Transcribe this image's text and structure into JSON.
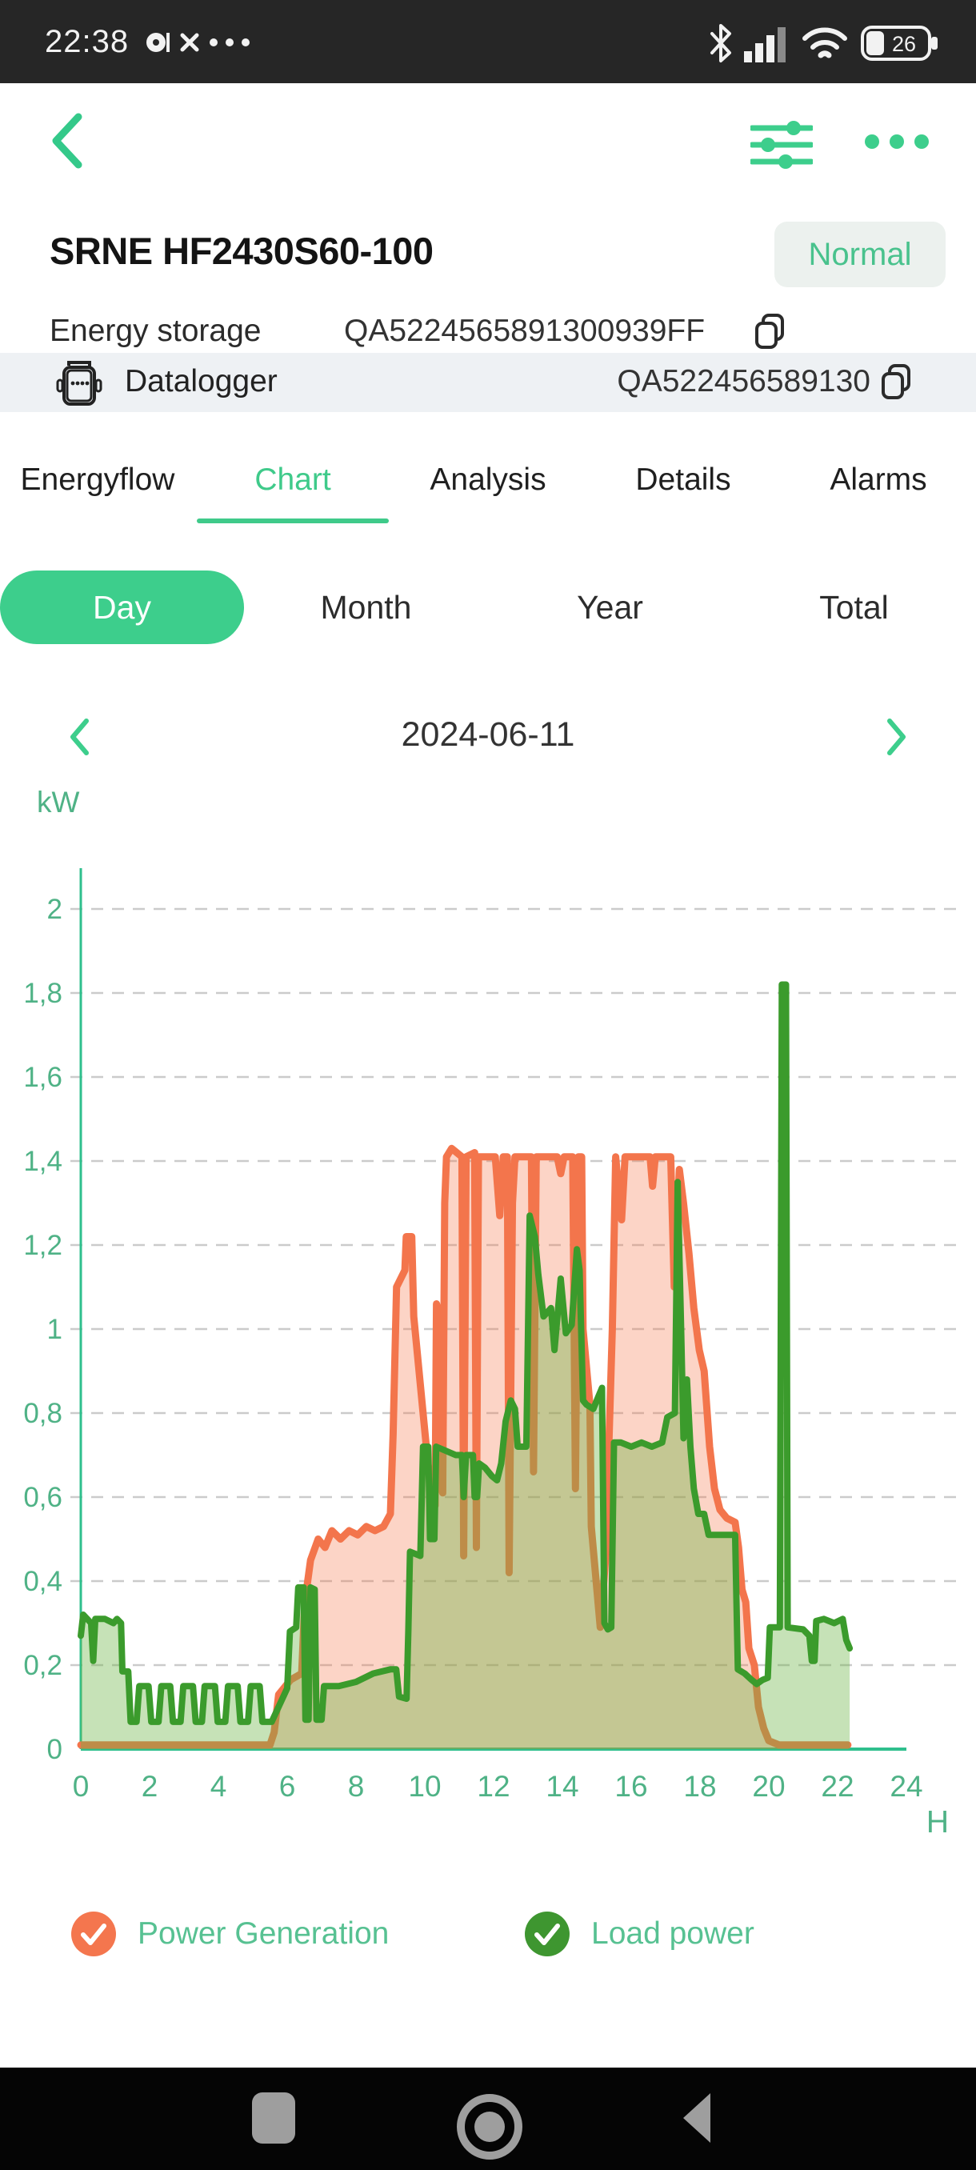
{
  "status_bar": {
    "time": "22:38",
    "battery_percent": "26"
  },
  "device": {
    "title": "SRNE HF2430S60-100",
    "status_badge": "Normal",
    "storage_label": "Energy storage",
    "storage_id": "QA5224565891300939FF",
    "datalogger_label": "Datalogger",
    "datalogger_id": "QA522456589130"
  },
  "tabs": {
    "items": [
      "Energyflow",
      "Chart",
      "Analysis",
      "Details",
      "Alarms"
    ],
    "active": "Chart"
  },
  "period_tabs": {
    "items": [
      "Day",
      "Month",
      "Year",
      "Total"
    ],
    "active": "Day"
  },
  "date_nav": {
    "date": "2024-06-11"
  },
  "chart_data": {
    "type": "area",
    "title": "",
    "unit_label": "kW",
    "xlabel": "H",
    "xlim": [
      0,
      24
    ],
    "ylim": [
      0,
      2.1
    ],
    "x_ticks": [
      0,
      2,
      4,
      6,
      8,
      10,
      12,
      14,
      16,
      18,
      20,
      22,
      24
    ],
    "y_tick_labels": [
      "0",
      "0,2",
      "0,4",
      "0,6",
      "0,8",
      "1",
      "1,2",
      "1,4",
      "1,6",
      "1,8",
      "2"
    ],
    "grid": "horizontal-dashed",
    "legend_position": "bottom",
    "axis_color": "#2FBF8D",
    "grid_color": "#CBCBCB",
    "tick_text_color": "#4FB286",
    "series": [
      {
        "name": "Power Generation",
        "color": "#F3754C",
        "fill": "rgba(245,120,77,0.32)",
        "line_width": 9,
        "points": [
          [
            0,
            0.01
          ],
          [
            5.5,
            0.01
          ],
          [
            5.62,
            0.04
          ],
          [
            5.75,
            0.13
          ],
          [
            6.1,
            0.165
          ],
          [
            6.42,
            0.18
          ],
          [
            6.5,
            0.33
          ],
          [
            6.58,
            0.39
          ],
          [
            6.68,
            0.45
          ],
          [
            6.9,
            0.5
          ],
          [
            7.1,
            0.48
          ],
          [
            7.3,
            0.52
          ],
          [
            7.55,
            0.5
          ],
          [
            7.8,
            0.52
          ],
          [
            8.05,
            0.51
          ],
          [
            8.3,
            0.53
          ],
          [
            8.55,
            0.52
          ],
          [
            8.8,
            0.53
          ],
          [
            9.0,
            0.56
          ],
          [
            9.08,
            0.75
          ],
          [
            9.18,
            1.1
          ],
          [
            9.3,
            1.12
          ],
          [
            9.42,
            1.14
          ],
          [
            9.46,
            1.22
          ],
          [
            9.62,
            1.22
          ],
          [
            9.68,
            1.03
          ],
          [
            10.22,
            0.57
          ],
          [
            10.3,
            0.58
          ],
          [
            10.34,
            1.06
          ],
          [
            10.4,
            1.04
          ],
          [
            10.45,
            0.63
          ],
          [
            10.52,
            0.61
          ],
          [
            10.58,
            1.3
          ],
          [
            10.63,
            1.41
          ],
          [
            10.78,
            1.43
          ],
          [
            11.08,
            1.41
          ],
          [
            11.13,
            0.46
          ],
          [
            11.2,
            1.41
          ],
          [
            11.45,
            1.42
          ],
          [
            11.5,
            0.48
          ],
          [
            11.56,
            1.41
          ],
          [
            12.05,
            1.41
          ],
          [
            12.18,
            1.27
          ],
          [
            12.28,
            1.41
          ],
          [
            12.4,
            1.41
          ],
          [
            12.45,
            0.42
          ],
          [
            12.55,
            1.3
          ],
          [
            12.62,
            1.41
          ],
          [
            13.1,
            1.41
          ],
          [
            13.16,
            0.66
          ],
          [
            13.24,
            1.41
          ],
          [
            13.85,
            1.41
          ],
          [
            13.95,
            1.37
          ],
          [
            14.05,
            1.41
          ],
          [
            14.3,
            1.41
          ],
          [
            14.38,
            0.62
          ],
          [
            14.46,
            1.41
          ],
          [
            14.56,
            1.41
          ],
          [
            14.6,
            1.0
          ],
          [
            14.8,
            0.82
          ],
          [
            14.84,
            0.53
          ],
          [
            15.1,
            0.29
          ],
          [
            15.25,
            0.45
          ],
          [
            15.45,
            1.0
          ],
          [
            15.55,
            1.41
          ],
          [
            15.72,
            1.26
          ],
          [
            15.82,
            1.41
          ],
          [
            16.55,
            1.41
          ],
          [
            16.62,
            1.34
          ],
          [
            16.7,
            1.41
          ],
          [
            17.15,
            1.41
          ],
          [
            17.25,
            1.1
          ],
          [
            17.4,
            1.38
          ],
          [
            17.52,
            1.3
          ],
          [
            17.68,
            1.18
          ],
          [
            17.82,
            1.05
          ],
          [
            17.98,
            0.95
          ],
          [
            18.12,
            0.9
          ],
          [
            18.28,
            0.72
          ],
          [
            18.42,
            0.62
          ],
          [
            18.58,
            0.57
          ],
          [
            18.78,
            0.55
          ],
          [
            19.02,
            0.54
          ],
          [
            19.12,
            0.48
          ],
          [
            19.22,
            0.38
          ],
          [
            19.33,
            0.35
          ],
          [
            19.42,
            0.24
          ],
          [
            19.58,
            0.2
          ],
          [
            19.7,
            0.1
          ],
          [
            19.85,
            0.05
          ],
          [
            20.0,
            0.02
          ],
          [
            20.3,
            0.01
          ],
          [
            22.3,
            0.01
          ]
        ]
      },
      {
        "name": "Load power",
        "color": "#3B9B2C",
        "fill": "rgba(106,178,66,0.38)",
        "line_width": 8,
        "points": [
          [
            0,
            0.27
          ],
          [
            0.07,
            0.32
          ],
          [
            0.3,
            0.3
          ],
          [
            0.36,
            0.21
          ],
          [
            0.42,
            0.31
          ],
          [
            0.7,
            0.31
          ],
          [
            0.95,
            0.3
          ],
          [
            1.05,
            0.31
          ],
          [
            1.17,
            0.3
          ],
          [
            1.21,
            0.185
          ],
          [
            1.38,
            0.185
          ],
          [
            1.45,
            0.065
          ],
          [
            1.62,
            0.065
          ],
          [
            1.7,
            0.15
          ],
          [
            1.97,
            0.15
          ],
          [
            2.05,
            0.065
          ],
          [
            2.26,
            0.065
          ],
          [
            2.34,
            0.15
          ],
          [
            2.6,
            0.15
          ],
          [
            2.68,
            0.065
          ],
          [
            2.9,
            0.065
          ],
          [
            2.98,
            0.15
          ],
          [
            3.26,
            0.15
          ],
          [
            3.34,
            0.065
          ],
          [
            3.52,
            0.065
          ],
          [
            3.6,
            0.15
          ],
          [
            3.9,
            0.15
          ],
          [
            3.98,
            0.065
          ],
          [
            4.2,
            0.065
          ],
          [
            4.28,
            0.15
          ],
          [
            4.56,
            0.15
          ],
          [
            4.64,
            0.065
          ],
          [
            4.86,
            0.065
          ],
          [
            4.94,
            0.15
          ],
          [
            5.2,
            0.15
          ],
          [
            5.28,
            0.065
          ],
          [
            5.55,
            0.065
          ],
          [
            6.0,
            0.145
          ],
          [
            6.08,
            0.28
          ],
          [
            6.26,
            0.29
          ],
          [
            6.32,
            0.385
          ],
          [
            6.48,
            0.385
          ],
          [
            6.53,
            0.07
          ],
          [
            6.62,
            0.07
          ],
          [
            6.68,
            0.385
          ],
          [
            6.8,
            0.38
          ],
          [
            6.85,
            0.07
          ],
          [
            7.0,
            0.07
          ],
          [
            7.07,
            0.15
          ],
          [
            7.5,
            0.15
          ],
          [
            8.0,
            0.16
          ],
          [
            8.5,
            0.18
          ],
          [
            9.0,
            0.19
          ],
          [
            9.17,
            0.19
          ],
          [
            9.25,
            0.125
          ],
          [
            9.47,
            0.12
          ],
          [
            9.52,
            0.28
          ],
          [
            9.57,
            0.47
          ],
          [
            9.87,
            0.46
          ],
          [
            9.95,
            0.72
          ],
          [
            10.1,
            0.72
          ],
          [
            10.15,
            0.5
          ],
          [
            10.28,
            0.5
          ],
          [
            10.33,
            0.72
          ],
          [
            10.9,
            0.7
          ],
          [
            11.08,
            0.7
          ],
          [
            11.13,
            0.6
          ],
          [
            11.2,
            0.7
          ],
          [
            11.4,
            0.7
          ],
          [
            11.45,
            0.6
          ],
          [
            11.52,
            0.6
          ],
          [
            11.58,
            0.68
          ],
          [
            11.75,
            0.67
          ],
          [
            11.95,
            0.65
          ],
          [
            12.1,
            0.64
          ],
          [
            12.22,
            0.68
          ],
          [
            12.35,
            0.78
          ],
          [
            12.5,
            0.83
          ],
          [
            12.62,
            0.81
          ],
          [
            12.7,
            0.72
          ],
          [
            12.95,
            0.72
          ],
          [
            13.05,
            1.27
          ],
          [
            13.2,
            1.22
          ],
          [
            13.3,
            1.13
          ],
          [
            13.45,
            1.03
          ],
          [
            13.67,
            1.05
          ],
          [
            13.77,
            0.95
          ],
          [
            13.95,
            1.12
          ],
          [
            14.1,
            0.99
          ],
          [
            14.27,
            1.01
          ],
          [
            14.42,
            1.19
          ],
          [
            14.5,
            1.14
          ],
          [
            14.6,
            0.83
          ],
          [
            14.7,
            0.82
          ],
          [
            14.9,
            0.81
          ],
          [
            15.05,
            0.84
          ],
          [
            15.15,
            0.86
          ],
          [
            15.22,
            0.3
          ],
          [
            15.32,
            0.285
          ],
          [
            15.42,
            0.29
          ],
          [
            15.5,
            0.73
          ],
          [
            15.7,
            0.73
          ],
          [
            16.0,
            0.72
          ],
          [
            16.3,
            0.73
          ],
          [
            16.6,
            0.72
          ],
          [
            16.9,
            0.73
          ],
          [
            17.05,
            0.79
          ],
          [
            17.27,
            0.8
          ],
          [
            17.35,
            1.35
          ],
          [
            17.45,
            1.0
          ],
          [
            17.52,
            0.74
          ],
          [
            17.62,
            0.88
          ],
          [
            17.72,
            0.72
          ],
          [
            17.82,
            0.62
          ],
          [
            17.95,
            0.56
          ],
          [
            18.12,
            0.56
          ],
          [
            18.25,
            0.51
          ],
          [
            19.02,
            0.51
          ],
          [
            19.1,
            0.19
          ],
          [
            19.3,
            0.18
          ],
          [
            19.5,
            0.165
          ],
          [
            19.65,
            0.155
          ],
          [
            19.82,
            0.165
          ],
          [
            19.97,
            0.17
          ],
          [
            20.03,
            0.29
          ],
          [
            20.32,
            0.29
          ],
          [
            20.38,
            1.82
          ],
          [
            20.5,
            1.82
          ],
          [
            20.55,
            0.29
          ],
          [
            21.0,
            0.285
          ],
          [
            21.18,
            0.27
          ],
          [
            21.25,
            0.21
          ],
          [
            21.33,
            0.21
          ],
          [
            21.38,
            0.305
          ],
          [
            21.6,
            0.31
          ],
          [
            21.9,
            0.3
          ],
          [
            22.15,
            0.31
          ],
          [
            22.25,
            0.26
          ],
          [
            22.35,
            0.24
          ]
        ]
      }
    ]
  },
  "legend": {
    "items": [
      {
        "label": "Power Generation",
        "color": "#F4764E"
      },
      {
        "label": "Load power",
        "color": "#3E9630"
      }
    ]
  }
}
